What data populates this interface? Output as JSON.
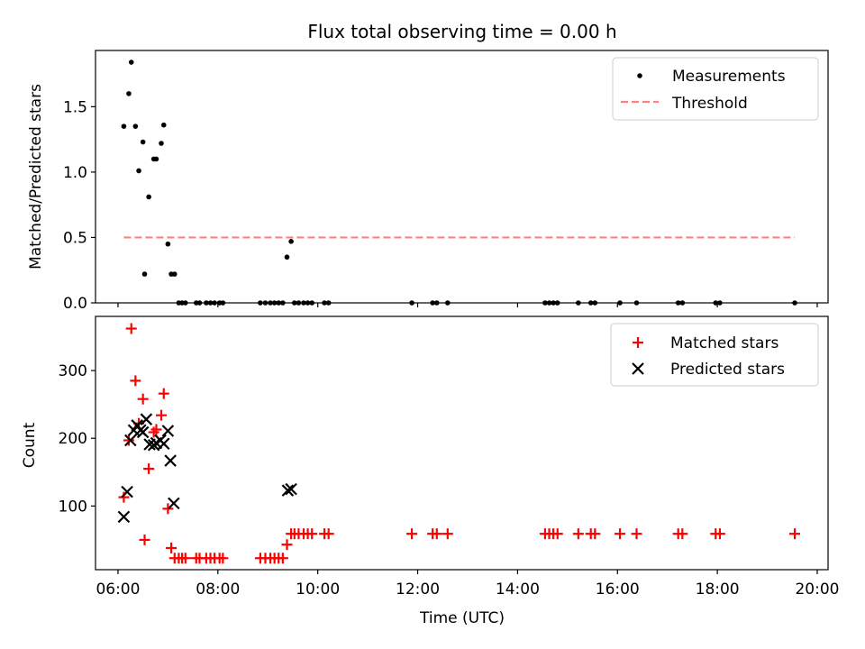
{
  "figure": {
    "title": "Flux total observing time = 0.00 h",
    "xlabel": "Time (UTC)"
  },
  "chart_data": [
    {
      "type": "scatter",
      "panel": "top",
      "ylabel": "Matched/Predicted stars",
      "xlim": [
        "05:33",
        "20:13"
      ],
      "ylim": [
        0,
        1.93
      ],
      "yticks": [
        0.0,
        0.5,
        1.0,
        1.5
      ],
      "ytick_labels": [
        "0.0",
        "0.5",
        "1.0",
        "1.5"
      ],
      "grid": false,
      "legend_position": "upper right",
      "series": [
        {
          "name": "Measurements",
          "kind": "scatter",
          "color": "#000000",
          "marker": "dot",
          "points": [
            [
              "06:07",
              1.35
            ],
            [
              "06:13",
              1.6
            ],
            [
              "06:16",
              1.84
            ],
            [
              "06:21",
              1.35
            ],
            [
              "06:25",
              1.01
            ],
            [
              "06:30",
              1.23
            ],
            [
              "06:32",
              0.22
            ],
            [
              "06:37",
              0.81
            ],
            [
              "06:43",
              1.1
            ],
            [
              "06:46",
              1.1
            ],
            [
              "06:52",
              1.22
            ],
            [
              "06:55",
              1.36
            ],
            [
              "07:00",
              0.45
            ],
            [
              "07:04",
              0.22
            ],
            [
              "07:08",
              0.22
            ],
            [
              "07:13",
              0.0
            ],
            [
              "07:17",
              0.0
            ],
            [
              "07:21",
              0.0
            ],
            [
              "07:34",
              0.0
            ],
            [
              "07:38",
              0.0
            ],
            [
              "07:46",
              0.0
            ],
            [
              "07:51",
              0.0
            ],
            [
              "07:56",
              0.0
            ],
            [
              "08:02",
              0.0
            ],
            [
              "08:06",
              0.0
            ],
            [
              "08:51",
              0.0
            ],
            [
              "08:57",
              0.0
            ],
            [
              "09:03",
              0.0
            ],
            [
              "09:08",
              0.0
            ],
            [
              "09:13",
              0.0
            ],
            [
              "09:18",
              0.0
            ],
            [
              "09:23",
              0.35
            ],
            [
              "09:28",
              0.47
            ],
            [
              "09:32",
              0.0
            ],
            [
              "09:37",
              0.0
            ],
            [
              "09:43",
              0.0
            ],
            [
              "09:48",
              0.0
            ],
            [
              "09:53",
              0.0
            ],
            [
              "10:08",
              0.0
            ],
            [
              "10:13",
              0.0
            ],
            [
              "11:53",
              0.0
            ],
            [
              "12:18",
              0.0
            ],
            [
              "12:23",
              0.0
            ],
            [
              "12:36",
              0.0
            ],
            [
              "14:33",
              0.0
            ],
            [
              "14:38",
              0.0
            ],
            [
              "14:43",
              0.0
            ],
            [
              "14:48",
              0.0
            ],
            [
              "15:13",
              0.0
            ],
            [
              "15:28",
              0.0
            ],
            [
              "15:33",
              0.0
            ],
            [
              "16:03",
              0.0
            ],
            [
              "16:23",
              0.0
            ],
            [
              "17:13",
              0.0
            ],
            [
              "17:18",
              0.0
            ],
            [
              "17:58",
              0.0
            ],
            [
              "18:03",
              0.0
            ],
            [
              "19:33",
              0.0
            ]
          ]
        },
        {
          "name": "Threshold",
          "kind": "line",
          "style": "dashed",
          "color": "#ff8080",
          "points": [
            [
              "06:07",
              0.5
            ],
            [
              "19:33",
              0.5
            ]
          ]
        }
      ]
    },
    {
      "type": "scatter",
      "panel": "bottom",
      "ylabel": "Count",
      "xlabel": "Time (UTC)",
      "xlim": [
        "05:33",
        "20:13"
      ],
      "ylim": [
        6,
        380
      ],
      "yticks": [
        100,
        200,
        300
      ],
      "ytick_labels": [
        "100",
        "200",
        "300"
      ],
      "xticks": [
        "06:00",
        "08:00",
        "10:00",
        "12:00",
        "14:00",
        "16:00",
        "18:00",
        "20:00"
      ],
      "xtick_labels": [
        "06:00",
        "08:00",
        "10:00",
        "12:00",
        "14:00",
        "16:00",
        "18:00",
        "20:00"
      ],
      "grid": false,
      "legend_position": "upper right",
      "series": [
        {
          "name": "Matched stars",
          "kind": "scatter",
          "color": "#ff0000",
          "marker": "plus",
          "points": [
            [
              "06:07",
              113
            ],
            [
              "06:13",
              197
            ],
            [
              "06:16",
              362
            ],
            [
              "06:21",
              285
            ],
            [
              "06:25",
              222
            ],
            [
              "06:30",
              258
            ],
            [
              "06:32",
              50
            ],
            [
              "06:37",
              155
            ],
            [
              "06:43",
              209
            ],
            [
              "06:46",
              213
            ],
            [
              "06:52",
              234
            ],
            [
              "06:55",
              266
            ],
            [
              "07:00",
              96
            ],
            [
              "07:04",
              38
            ],
            [
              "07:08",
              23
            ],
            [
              "07:13",
              23
            ],
            [
              "07:17",
              23
            ],
            [
              "07:21",
              23
            ],
            [
              "07:34",
              23
            ],
            [
              "07:38",
              23
            ],
            [
              "07:46",
              23
            ],
            [
              "07:51",
              23
            ],
            [
              "07:56",
              23
            ],
            [
              "08:02",
              23
            ],
            [
              "08:06",
              23
            ],
            [
              "08:51",
              23
            ],
            [
              "08:57",
              23
            ],
            [
              "09:03",
              23
            ],
            [
              "09:08",
              23
            ],
            [
              "09:13",
              23
            ],
            [
              "09:18",
              23
            ],
            [
              "09:23",
              43
            ],
            [
              "09:28",
              59
            ],
            [
              "09:32",
              59
            ],
            [
              "09:37",
              59
            ],
            [
              "09:43",
              59
            ],
            [
              "09:48",
              59
            ],
            [
              "09:53",
              59
            ],
            [
              "10:08",
              59
            ],
            [
              "10:13",
              59
            ],
            [
              "11:53",
              59
            ],
            [
              "12:18",
              59
            ],
            [
              "12:23",
              59
            ],
            [
              "12:36",
              59
            ],
            [
              "14:33",
              59
            ],
            [
              "14:38",
              59
            ],
            [
              "14:43",
              59
            ],
            [
              "14:48",
              59
            ],
            [
              "15:13",
              59
            ],
            [
              "15:28",
              59
            ],
            [
              "15:33",
              59
            ],
            [
              "16:03",
              59
            ],
            [
              "16:23",
              59
            ],
            [
              "17:13",
              59
            ],
            [
              "17:18",
              59
            ],
            [
              "17:58",
              59
            ],
            [
              "18:03",
              59
            ],
            [
              "19:33",
              59
            ]
          ]
        },
        {
          "name": "Predicted stars",
          "kind": "scatter",
          "color": "#000000",
          "marker": "x",
          "points": [
            [
              "06:07",
              84
            ],
            [
              "06:11",
              121
            ],
            [
              "06:15",
              197
            ],
            [
              "06:19",
              212
            ],
            [
              "06:23",
              219
            ],
            [
              "06:27",
              212
            ],
            [
              "06:30",
              209
            ],
            [
              "06:34",
              228
            ],
            [
              "06:38",
              191
            ],
            [
              "06:43",
              190
            ],
            [
              "06:46",
              193
            ],
            [
              "06:51",
              197
            ],
            [
              "06:55",
              192
            ],
            [
              "07:00",
              211
            ],
            [
              "07:03",
              167
            ],
            [
              "07:07",
              104
            ],
            [
              "09:24",
              123
            ],
            [
              "09:28",
              125
            ]
          ]
        }
      ]
    }
  ]
}
